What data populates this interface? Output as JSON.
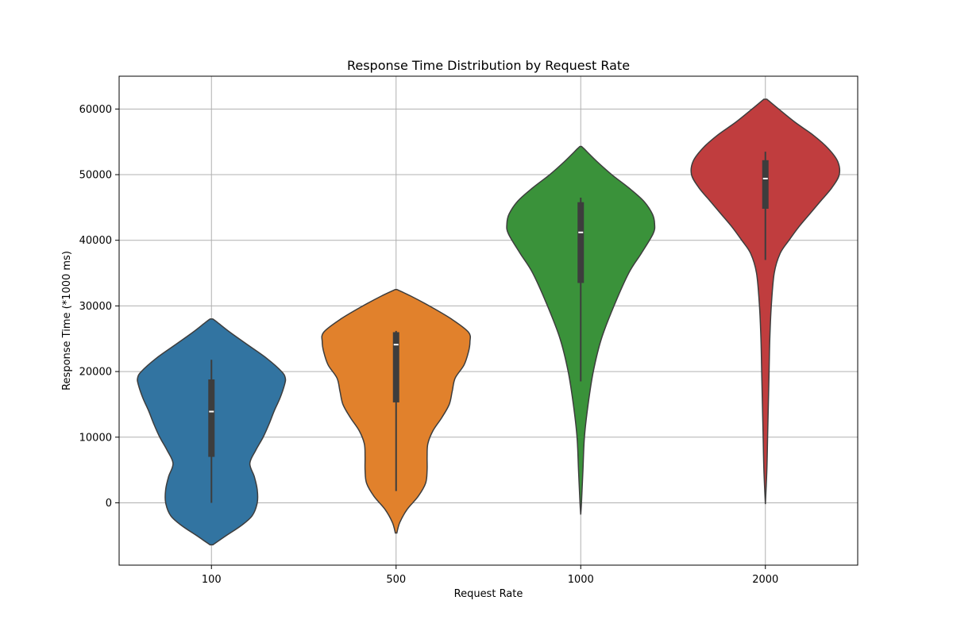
{
  "chart_data": {
    "type": "violin",
    "title": "Response Time Distribution by Request Rate",
    "xlabel": "Request Rate",
    "ylabel": "Response Time (*1000 ms)",
    "categories": [
      "100",
      "500",
      "1000",
      "2000"
    ],
    "ylim": [
      -9500,
      65000
    ],
    "yticks": [
      0,
      10000,
      20000,
      30000,
      40000,
      50000,
      60000
    ],
    "ytick_labels": [
      "0",
      "10000",
      "20000",
      "30000",
      "40000",
      "50000",
      "60000"
    ],
    "grid": true,
    "colors": [
      "#3274a1",
      "#e1812c",
      "#3a923a",
      "#c03d3e"
    ],
    "violins": [
      {
        "category": "100",
        "min_extent": -6400,
        "max_extent": 28000,
        "profile": [
          [
            -6400,
            0.02
          ],
          [
            -5000,
            0.2
          ],
          [
            -3500,
            0.4
          ],
          [
            -2000,
            0.55
          ],
          [
            0,
            0.62
          ],
          [
            2000,
            0.62
          ],
          [
            4000,
            0.58
          ],
          [
            6000,
            0.52
          ],
          [
            8000,
            0.6
          ],
          [
            10000,
            0.7
          ],
          [
            12000,
            0.78
          ],
          [
            14000,
            0.85
          ],
          [
            16000,
            0.93
          ],
          [
            18000,
            0.99
          ],
          [
            19000,
            1.0
          ],
          [
            20000,
            0.95
          ],
          [
            22000,
            0.75
          ],
          [
            24000,
            0.5
          ],
          [
            26000,
            0.25
          ],
          [
            27500,
            0.08
          ],
          [
            28000,
            0.02
          ]
        ],
        "whisker": [
          0,
          21800
        ],
        "q1": 7000,
        "q3": 18800,
        "median": 13900
      },
      {
        "category": "500",
        "min_extent": -4600,
        "max_extent": 32500,
        "profile": [
          [
            -4600,
            0.01
          ],
          [
            -3000,
            0.05
          ],
          [
            -1000,
            0.15
          ],
          [
            1000,
            0.3
          ],
          [
            3000,
            0.4
          ],
          [
            5000,
            0.42
          ],
          [
            7000,
            0.42
          ],
          [
            9000,
            0.43
          ],
          [
            11000,
            0.5
          ],
          [
            13000,
            0.62
          ],
          [
            15000,
            0.72
          ],
          [
            17000,
            0.76
          ],
          [
            19000,
            0.8
          ],
          [
            21000,
            0.92
          ],
          [
            23000,
            0.98
          ],
          [
            24500,
            1.0
          ],
          [
            26000,
            0.98
          ],
          [
            28000,
            0.75
          ],
          [
            30000,
            0.45
          ],
          [
            31500,
            0.2
          ],
          [
            32500,
            0.01
          ]
        ],
        "whisker": [
          1800,
          26200
        ],
        "q1": 15300,
        "q3": 26000,
        "median": 24100
      },
      {
        "category": "1000",
        "min_extent": -1800,
        "max_extent": 54300,
        "profile": [
          [
            -1800,
            0.0
          ],
          [
            0,
            0.01
          ],
          [
            5000,
            0.03
          ],
          [
            10000,
            0.05
          ],
          [
            15000,
            0.1
          ],
          [
            20000,
            0.17
          ],
          [
            25000,
            0.28
          ],
          [
            30000,
            0.45
          ],
          [
            35000,
            0.65
          ],
          [
            38000,
            0.82
          ],
          [
            41000,
            0.98
          ],
          [
            42500,
            1.0
          ],
          [
            44000,
            0.97
          ],
          [
            46000,
            0.85
          ],
          [
            48000,
            0.65
          ],
          [
            50000,
            0.42
          ],
          [
            52000,
            0.22
          ],
          [
            54000,
            0.04
          ],
          [
            54300,
            0.01
          ]
        ],
        "whisker": [
          18500,
          46500
        ],
        "q1": 33500,
        "q3": 45800,
        "median": 41200
      },
      {
        "category": "2000",
        "min_extent": -200,
        "max_extent": 61500,
        "profile": [
          [
            -200,
            0.0
          ],
          [
            5000,
            0.02
          ],
          [
            10000,
            0.03
          ],
          [
            15000,
            0.04
          ],
          [
            20000,
            0.05
          ],
          [
            25000,
            0.06
          ],
          [
            30000,
            0.08
          ],
          [
            35000,
            0.12
          ],
          [
            38000,
            0.2
          ],
          [
            40000,
            0.32
          ],
          [
            42000,
            0.45
          ],
          [
            44000,
            0.6
          ],
          [
            46000,
            0.75
          ],
          [
            48000,
            0.9
          ],
          [
            50000,
            1.0
          ],
          [
            52000,
            0.98
          ],
          [
            54000,
            0.85
          ],
          [
            56000,
            0.65
          ],
          [
            58000,
            0.4
          ],
          [
            60000,
            0.18
          ],
          [
            61500,
            0.02
          ]
        ],
        "whisker": [
          37000,
          53500
        ],
        "q1": 44800,
        "q3": 52200,
        "median": 49400
      }
    ]
  }
}
